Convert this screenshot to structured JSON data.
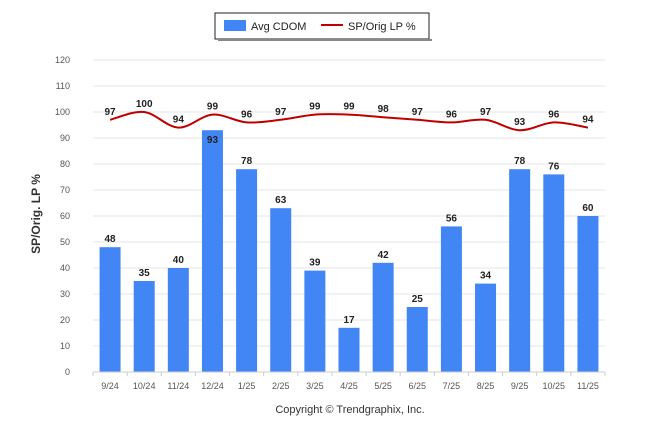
{
  "chart_data": {
    "type": "bar",
    "categories": [
      "9/24",
      "10/24",
      "11/24",
      "12/24",
      "1/25",
      "2/25",
      "3/25",
      "4/25",
      "5/25",
      "6/25",
      "7/25",
      "8/25",
      "9/25",
      "10/25",
      "11/25"
    ],
    "series": [
      {
        "name": "Avg CDOM",
        "type": "bar",
        "color": "#4285f4",
        "values": [
          48,
          35,
          40,
          93,
          78,
          63,
          39,
          17,
          42,
          25,
          56,
          34,
          78,
          76,
          60
        ]
      },
      {
        "name": "SP/Orig LP %",
        "type": "line",
        "color": "#c00000",
        "values": [
          97,
          100,
          94,
          99,
          96,
          97,
          99,
          99,
          98,
          97,
          96,
          97,
          93,
          96,
          94
        ]
      }
    ],
    "ylabel": "SP/Orig. LP %",
    "ylim": [
      0,
      120
    ],
    "yticks": [
      0,
      10,
      20,
      30,
      40,
      50,
      60,
      70,
      80,
      90,
      100,
      110,
      120
    ],
    "grid": true,
    "legend_position": "top-center"
  },
  "legend": {
    "bar_label": "Avg CDOM",
    "line_label": "SP/Orig LP %"
  },
  "credit": "Copyright © Trendgraphix, Inc."
}
